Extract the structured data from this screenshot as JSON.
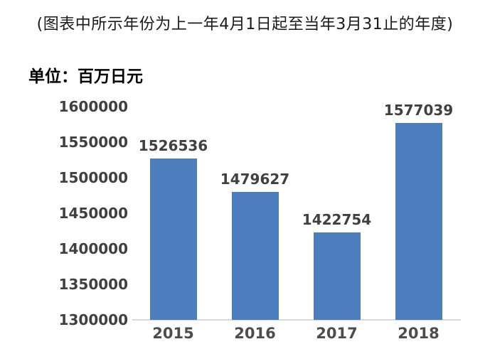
{
  "note": "(图表中所示年份为上一年4月1日起至当年3月31止的年度)",
  "unit_label": "单位：百万日元",
  "chart_data": {
    "type": "bar",
    "title": "(图表中所示年份为上一年4月1日起至当年3月31止的年度)",
    "categories": [
      "2015",
      "2016",
      "2017",
      "2018"
    ],
    "values": [
      1526536,
      1479627,
      1422754,
      1577039
    ],
    "data_labels": [
      "1526536",
      "1479627",
      "1422754",
      "1577039"
    ],
    "xlabel": "",
    "ylabel": "单位：百万日元",
    "ylim": [
      1300000,
      1600000
    ],
    "ytick_step": 50000,
    "ytick_labels": [
      "1600000",
      "1550000",
      "1500000",
      "1450000",
      "1400000",
      "1350000",
      "1300000"
    ],
    "grid": false,
    "legend": "none",
    "colors": {
      "bar": "#4C7DBC",
      "value_label": "#404040",
      "ytick_label": "#404040",
      "xtick_label": "#4d4d4d",
      "axis_line": "#D9D9D9",
      "note_text": "#1a1a1a",
      "background": "#ffffff"
    }
  }
}
